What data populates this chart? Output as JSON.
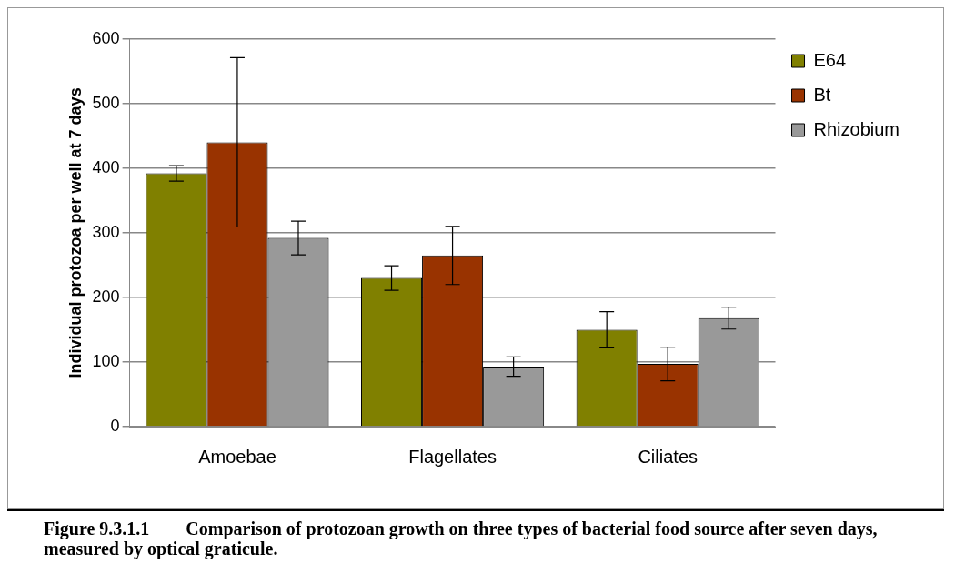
{
  "chart_data": {
    "type": "bar",
    "ylabel": "Individual protozoa per well at 7 days",
    "categories": [
      "Amoebae",
      "Flagellates",
      "Ciliates"
    ],
    "series": [
      {
        "name": "E64",
        "color": "#808000",
        "values": [
          392,
          230,
          150
        ],
        "errors": [
          12,
          19,
          28
        ]
      },
      {
        "name": "Bt",
        "color": "#993300",
        "values": [
          440,
          265,
          97
        ],
        "errors": [
          131,
          45,
          26
        ]
      },
      {
        "name": "Rhizobium",
        "color": "#999999",
        "values": [
          292,
          93,
          168
        ],
        "errors": [
          26,
          15,
          17
        ]
      }
    ],
    "ylim": [
      0,
      600
    ],
    "yticks": [
      0,
      100,
      200,
      300,
      400,
      500,
      600
    ],
    "grid": "y",
    "legend": "top right",
    "annotations": [
      "Figure 9.3.1.1  Comparison of protozoan growth on three types of bacterial food source after seven days, measured by optical graticule."
    ]
  }
}
